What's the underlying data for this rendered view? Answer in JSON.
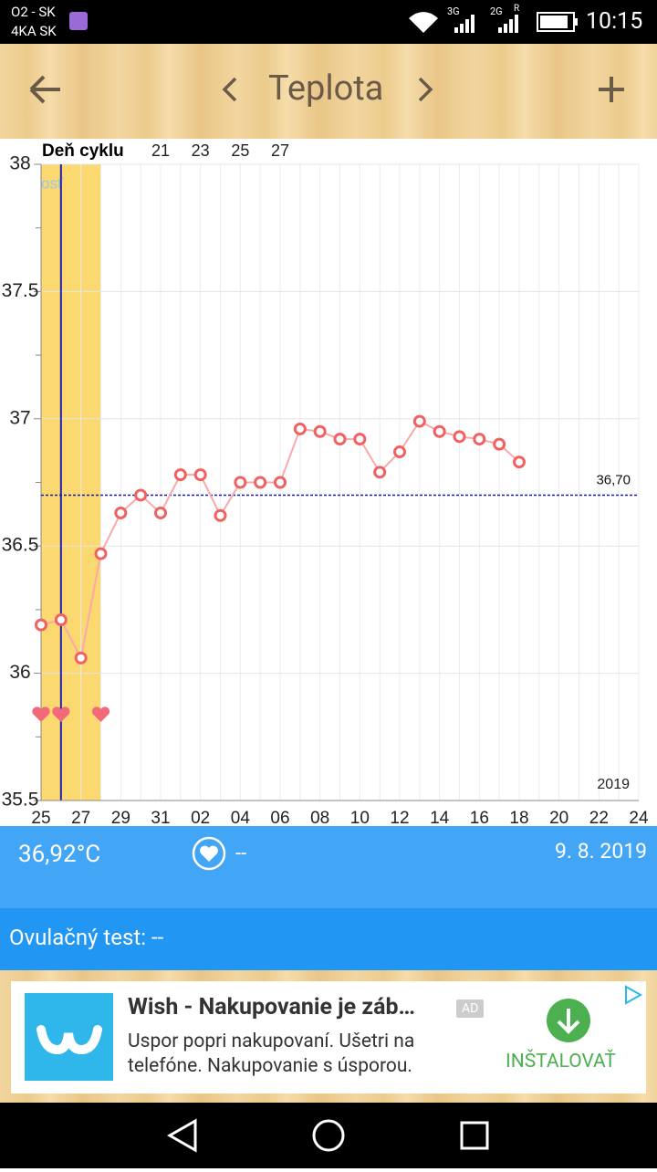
{
  "status_bar": {
    "carrier1": "O2 - SK",
    "carrier2": "4KA SK",
    "net1": "3G",
    "net2": "2G",
    "roaming": "R",
    "time": "10:15"
  },
  "toolbar": {
    "title": "Teplota"
  },
  "chart_data": {
    "type": "line",
    "cycle_label": "Deň cyklu",
    "faded_label": "osť",
    "year_label": "2019",
    "categories": [
      "25",
      null,
      "27",
      null,
      "29",
      null,
      "31",
      null,
      "02",
      null,
      "04",
      null,
      "06",
      null,
      "08",
      null,
      "10",
      null,
      "12",
      null,
      "14",
      null,
      "16",
      null,
      "18",
      null,
      "20",
      null,
      "22",
      null,
      "24"
    ],
    "cycle_days": [
      null,
      null,
      null,
      null,
      null,
      null,
      "21",
      null,
      "23",
      null,
      "25",
      null,
      "27",
      null,
      null,
      null,
      null,
      null,
      null,
      null,
      null,
      null,
      null,
      null,
      null,
      null,
      null,
      null,
      null,
      null,
      null
    ],
    "values": [
      36.19,
      36.21,
      36.06,
      36.47,
      36.63,
      36.7,
      36.63,
      36.78,
      36.78,
      36.62,
      36.75,
      36.75,
      36.75,
      36.96,
      36.95,
      36.92,
      36.92,
      36.79,
      36.87,
      36.99,
      36.95,
      36.93,
      36.92,
      36.9,
      36.83,
      null,
      null,
      null,
      null,
      null,
      null
    ],
    "color": "#f06262",
    "line_color": "#f9a9a9",
    "coverline": {
      "value": 36.7,
      "label": "36,70"
    },
    "coverline_color": "#1a1aa0",
    "ylim": [
      35.5,
      38
    ],
    "yticks": [
      35.5,
      36,
      36.5,
      37,
      37.5,
      38
    ],
    "grid": true
  },
  "info": {
    "temperature": "36,92°C",
    "sex": "--",
    "date": "9. 8. 2019",
    "ovulation": "Ovulačný test: --"
  },
  "ad": {
    "title": "Wish - Nakupovanie je záb…",
    "badge": "AD",
    "line1": "Uspor popri nakupovaní. Ušetri na",
    "line2": "telefóne. Nakupovanie s úsporou.",
    "button": "INŠTALOVAŤ"
  }
}
